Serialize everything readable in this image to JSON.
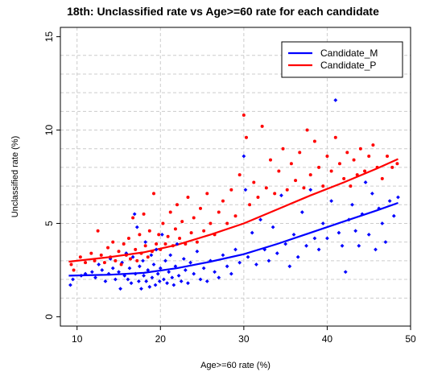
{
  "chart_data": {
    "type": "scatter",
    "title": "18th: Unclassified rate vs Age>=60 rate for each candidate",
    "xlabel": "Age>=60 rate (%)",
    "ylabel": "Unclassified rate (%)",
    "xlim": [
      8,
      50
    ],
    "ylim": [
      -0.5,
      15.5
    ],
    "x_ticks": [
      "10",
      "20",
      "30",
      "40",
      "50"
    ],
    "y_ticks": [
      "0",
      "5",
      "10",
      "15"
    ],
    "grid": true,
    "legend_position": "top-right",
    "series": [
      {
        "name": "Candidate_M",
        "color": "#0000ff",
        "points": [
          [
            9.2,
            1.7
          ],
          [
            9.5,
            2.0
          ],
          [
            10.5,
            2.2
          ],
          [
            11.0,
            2.3
          ],
          [
            11.8,
            2.4
          ],
          [
            12.2,
            2.1
          ],
          [
            12.6,
            2.8
          ],
          [
            13.0,
            2.5
          ],
          [
            13.4,
            1.9
          ],
          [
            13.8,
            2.3
          ],
          [
            14.0,
            3.1
          ],
          [
            14.3,
            2.6
          ],
          [
            14.6,
            2.0
          ],
          [
            15.0,
            2.4
          ],
          [
            15.2,
            1.5
          ],
          [
            15.4,
            2.9
          ],
          [
            15.7,
            2.2
          ],
          [
            15.9,
            3.4
          ],
          [
            16.1,
            2.0
          ],
          [
            16.3,
            2.6
          ],
          [
            16.5,
            1.8
          ],
          [
            16.7,
            3.2
          ],
          [
            16.9,
            5.5
          ],
          [
            17.0,
            2.3
          ],
          [
            17.2,
            4.8
          ],
          [
            17.4,
            1.9
          ],
          [
            17.5,
            2.7
          ],
          [
            17.7,
            1.5
          ],
          [
            17.9,
            3.0
          ],
          [
            18.0,
            2.2
          ],
          [
            18.2,
            4.0
          ],
          [
            18.3,
            1.9
          ],
          [
            18.5,
            2.5
          ],
          [
            18.7,
            1.6
          ],
          [
            18.9,
            3.3
          ],
          [
            19.0,
            2.1
          ],
          [
            19.2,
            2.8
          ],
          [
            19.4,
            1.7
          ],
          [
            19.5,
            3.6
          ],
          [
            19.7,
            2.3
          ],
          [
            19.9,
            1.9
          ],
          [
            20.0,
            2.6
          ],
          [
            20.2,
            4.4
          ],
          [
            20.4,
            2.0
          ],
          [
            20.6,
            3.0
          ],
          [
            20.8,
            1.8
          ],
          [
            21.0,
            2.4
          ],
          [
            21.2,
            3.3
          ],
          [
            21.4,
            2.1
          ],
          [
            21.6,
            1.7
          ],
          [
            21.8,
            2.7
          ],
          [
            22.0,
            3.9
          ],
          [
            22.2,
            2.2
          ],
          [
            22.5,
            1.9
          ],
          [
            22.8,
            3.1
          ],
          [
            23.0,
            2.5
          ],
          [
            23.3,
            1.8
          ],
          [
            23.6,
            2.9
          ],
          [
            24.0,
            2.3
          ],
          [
            24.4,
            3.5
          ],
          [
            24.8,
            2.0
          ],
          [
            25.2,
            2.6
          ],
          [
            25.6,
            1.9
          ],
          [
            26.0,
            3.0
          ],
          [
            26.5,
            2.4
          ],
          [
            27.0,
            2.1
          ],
          [
            27.5,
            3.3
          ],
          [
            28.0,
            2.7
          ],
          [
            28.5,
            2.3
          ],
          [
            29.0,
            3.6
          ],
          [
            29.5,
            2.9
          ],
          [
            30.0,
            8.6
          ],
          [
            30.2,
            6.8
          ],
          [
            30.5,
            3.2
          ],
          [
            31.0,
            4.5
          ],
          [
            31.5,
            2.8
          ],
          [
            32.0,
            5.2
          ],
          [
            32.5,
            3.6
          ],
          [
            33.0,
            3.0
          ],
          [
            33.5,
            4.8
          ],
          [
            34.0,
            3.4
          ],
          [
            34.5,
            6.5
          ],
          [
            35.0,
            3.9
          ],
          [
            35.5,
            2.7
          ],
          [
            36.0,
            4.4
          ],
          [
            36.5,
            3.2
          ],
          [
            37.0,
            5.6
          ],
          [
            37.5,
            3.8
          ],
          [
            38.0,
            6.8
          ],
          [
            38.5,
            4.2
          ],
          [
            39.0,
            3.6
          ],
          [
            39.5,
            5.0
          ],
          [
            40.0,
            4.2
          ],
          [
            40.5,
            6.2
          ],
          [
            41.0,
            11.6
          ],
          [
            41.4,
            4.5
          ],
          [
            41.8,
            3.8
          ],
          [
            42.2,
            2.4
          ],
          [
            42.6,
            5.2
          ],
          [
            43.0,
            6.0
          ],
          [
            43.4,
            4.6
          ],
          [
            43.8,
            3.8
          ],
          [
            44.2,
            5.5
          ],
          [
            44.6,
            7.2
          ],
          [
            45.0,
            4.4
          ],
          [
            45.4,
            6.6
          ],
          [
            45.8,
            3.6
          ],
          [
            46.2,
            5.8
          ],
          [
            46.6,
            5.0
          ],
          [
            47.0,
            4.0
          ],
          [
            47.5,
            6.2
          ],
          [
            48.0,
            5.4
          ],
          [
            48.5,
            6.4
          ]
        ]
      },
      {
        "name": "Candidate_P",
        "color": "#ff0000",
        "points": [
          [
            9.3,
            2.8
          ],
          [
            9.6,
            2.5
          ],
          [
            10.4,
            3.2
          ],
          [
            11.0,
            2.9
          ],
          [
            11.7,
            3.4
          ],
          [
            12.1,
            3.0
          ],
          [
            12.5,
            4.6
          ],
          [
            12.9,
            3.3
          ],
          [
            13.3,
            2.9
          ],
          [
            13.7,
            3.7
          ],
          [
            14.0,
            3.2
          ],
          [
            14.3,
            4.0
          ],
          [
            14.6,
            3.0
          ],
          [
            15.0,
            3.5
          ],
          [
            15.3,
            2.8
          ],
          [
            15.6,
            3.9
          ],
          [
            15.9,
            3.3
          ],
          [
            16.2,
            4.2
          ],
          [
            16.4,
            3.1
          ],
          [
            16.7,
            5.3
          ],
          [
            17.0,
            3.6
          ],
          [
            17.2,
            3.0
          ],
          [
            17.5,
            4.4
          ],
          [
            17.7,
            3.4
          ],
          [
            18.0,
            5.5
          ],
          [
            18.2,
            3.8
          ],
          [
            18.5,
            3.2
          ],
          [
            18.7,
            4.6
          ],
          [
            19.0,
            3.5
          ],
          [
            19.2,
            6.6
          ],
          [
            19.5,
            3.9
          ],
          [
            19.8,
            4.4
          ],
          [
            20.0,
            3.6
          ],
          [
            20.3,
            5.0
          ],
          [
            20.6,
            3.9
          ],
          [
            20.9,
            4.3
          ],
          [
            21.2,
            5.6
          ],
          [
            21.5,
            3.8
          ],
          [
            21.8,
            4.7
          ],
          [
            22.0,
            6.0
          ],
          [
            22.3,
            4.2
          ],
          [
            22.6,
            5.1
          ],
          [
            23.0,
            3.9
          ],
          [
            23.3,
            6.4
          ],
          [
            23.7,
            4.5
          ],
          [
            24.0,
            5.3
          ],
          [
            24.4,
            4.0
          ],
          [
            24.8,
            5.8
          ],
          [
            25.2,
            4.6
          ],
          [
            25.6,
            6.6
          ],
          [
            26.0,
            5.0
          ],
          [
            26.5,
            4.4
          ],
          [
            27.0,
            5.6
          ],
          [
            27.5,
            6.2
          ],
          [
            28.0,
            5.0
          ],
          [
            28.5,
            6.8
          ],
          [
            29.0,
            5.4
          ],
          [
            29.5,
            7.6
          ],
          [
            30.0,
            10.8
          ],
          [
            30.3,
            9.6
          ],
          [
            30.7,
            6.0
          ],
          [
            31.2,
            7.2
          ],
          [
            31.7,
            6.4
          ],
          [
            32.2,
            10.2
          ],
          [
            32.7,
            6.9
          ],
          [
            33.2,
            8.4
          ],
          [
            33.7,
            6.6
          ],
          [
            34.2,
            7.8
          ],
          [
            34.7,
            9.0
          ],
          [
            35.2,
            6.8
          ],
          [
            35.7,
            8.2
          ],
          [
            36.2,
            7.3
          ],
          [
            36.7,
            8.8
          ],
          [
            37.2,
            6.9
          ],
          [
            37.6,
            10.0
          ],
          [
            38.0,
            7.6
          ],
          [
            38.5,
            9.4
          ],
          [
            39.0,
            8.0
          ],
          [
            39.5,
            7.0
          ],
          [
            40.0,
            8.6
          ],
          [
            40.5,
            7.8
          ],
          [
            41.0,
            9.6
          ],
          [
            41.5,
            8.2
          ],
          [
            42.0,
            7.4
          ],
          [
            42.4,
            8.8
          ],
          [
            42.8,
            7.0
          ],
          [
            43.2,
            8.4
          ],
          [
            43.6,
            7.6
          ],
          [
            44.0,
            9.0
          ],
          [
            44.5,
            7.8
          ],
          [
            45.0,
            8.6
          ],
          [
            45.5,
            9.2
          ],
          [
            46.0,
            8.0
          ],
          [
            46.6,
            7.4
          ],
          [
            47.2,
            8.6
          ],
          [
            47.8,
            8.0
          ],
          [
            48.4,
            8.2
          ]
        ]
      }
    ],
    "fit_lines": [
      {
        "series": "Candidate_M",
        "color": "#0000ff",
        "points": [
          [
            9,
            2.2
          ],
          [
            14,
            2.25
          ],
          [
            18,
            2.35
          ],
          [
            22,
            2.6
          ],
          [
            26,
            2.95
          ],
          [
            30,
            3.35
          ],
          [
            34,
            3.9
          ],
          [
            38,
            4.5
          ],
          [
            42,
            5.1
          ],
          [
            46,
            5.7
          ],
          [
            48.5,
            6.1
          ]
        ]
      },
      {
        "series": "Candidate_P",
        "color": "#ff0000",
        "points": [
          [
            9,
            2.95
          ],
          [
            14,
            3.2
          ],
          [
            18,
            3.45
          ],
          [
            22,
            3.85
          ],
          [
            26,
            4.4
          ],
          [
            30,
            5.0
          ],
          [
            34,
            5.75
          ],
          [
            38,
            6.5
          ],
          [
            42,
            7.2
          ],
          [
            46,
            7.95
          ],
          [
            48.5,
            8.45
          ]
        ]
      }
    ]
  }
}
